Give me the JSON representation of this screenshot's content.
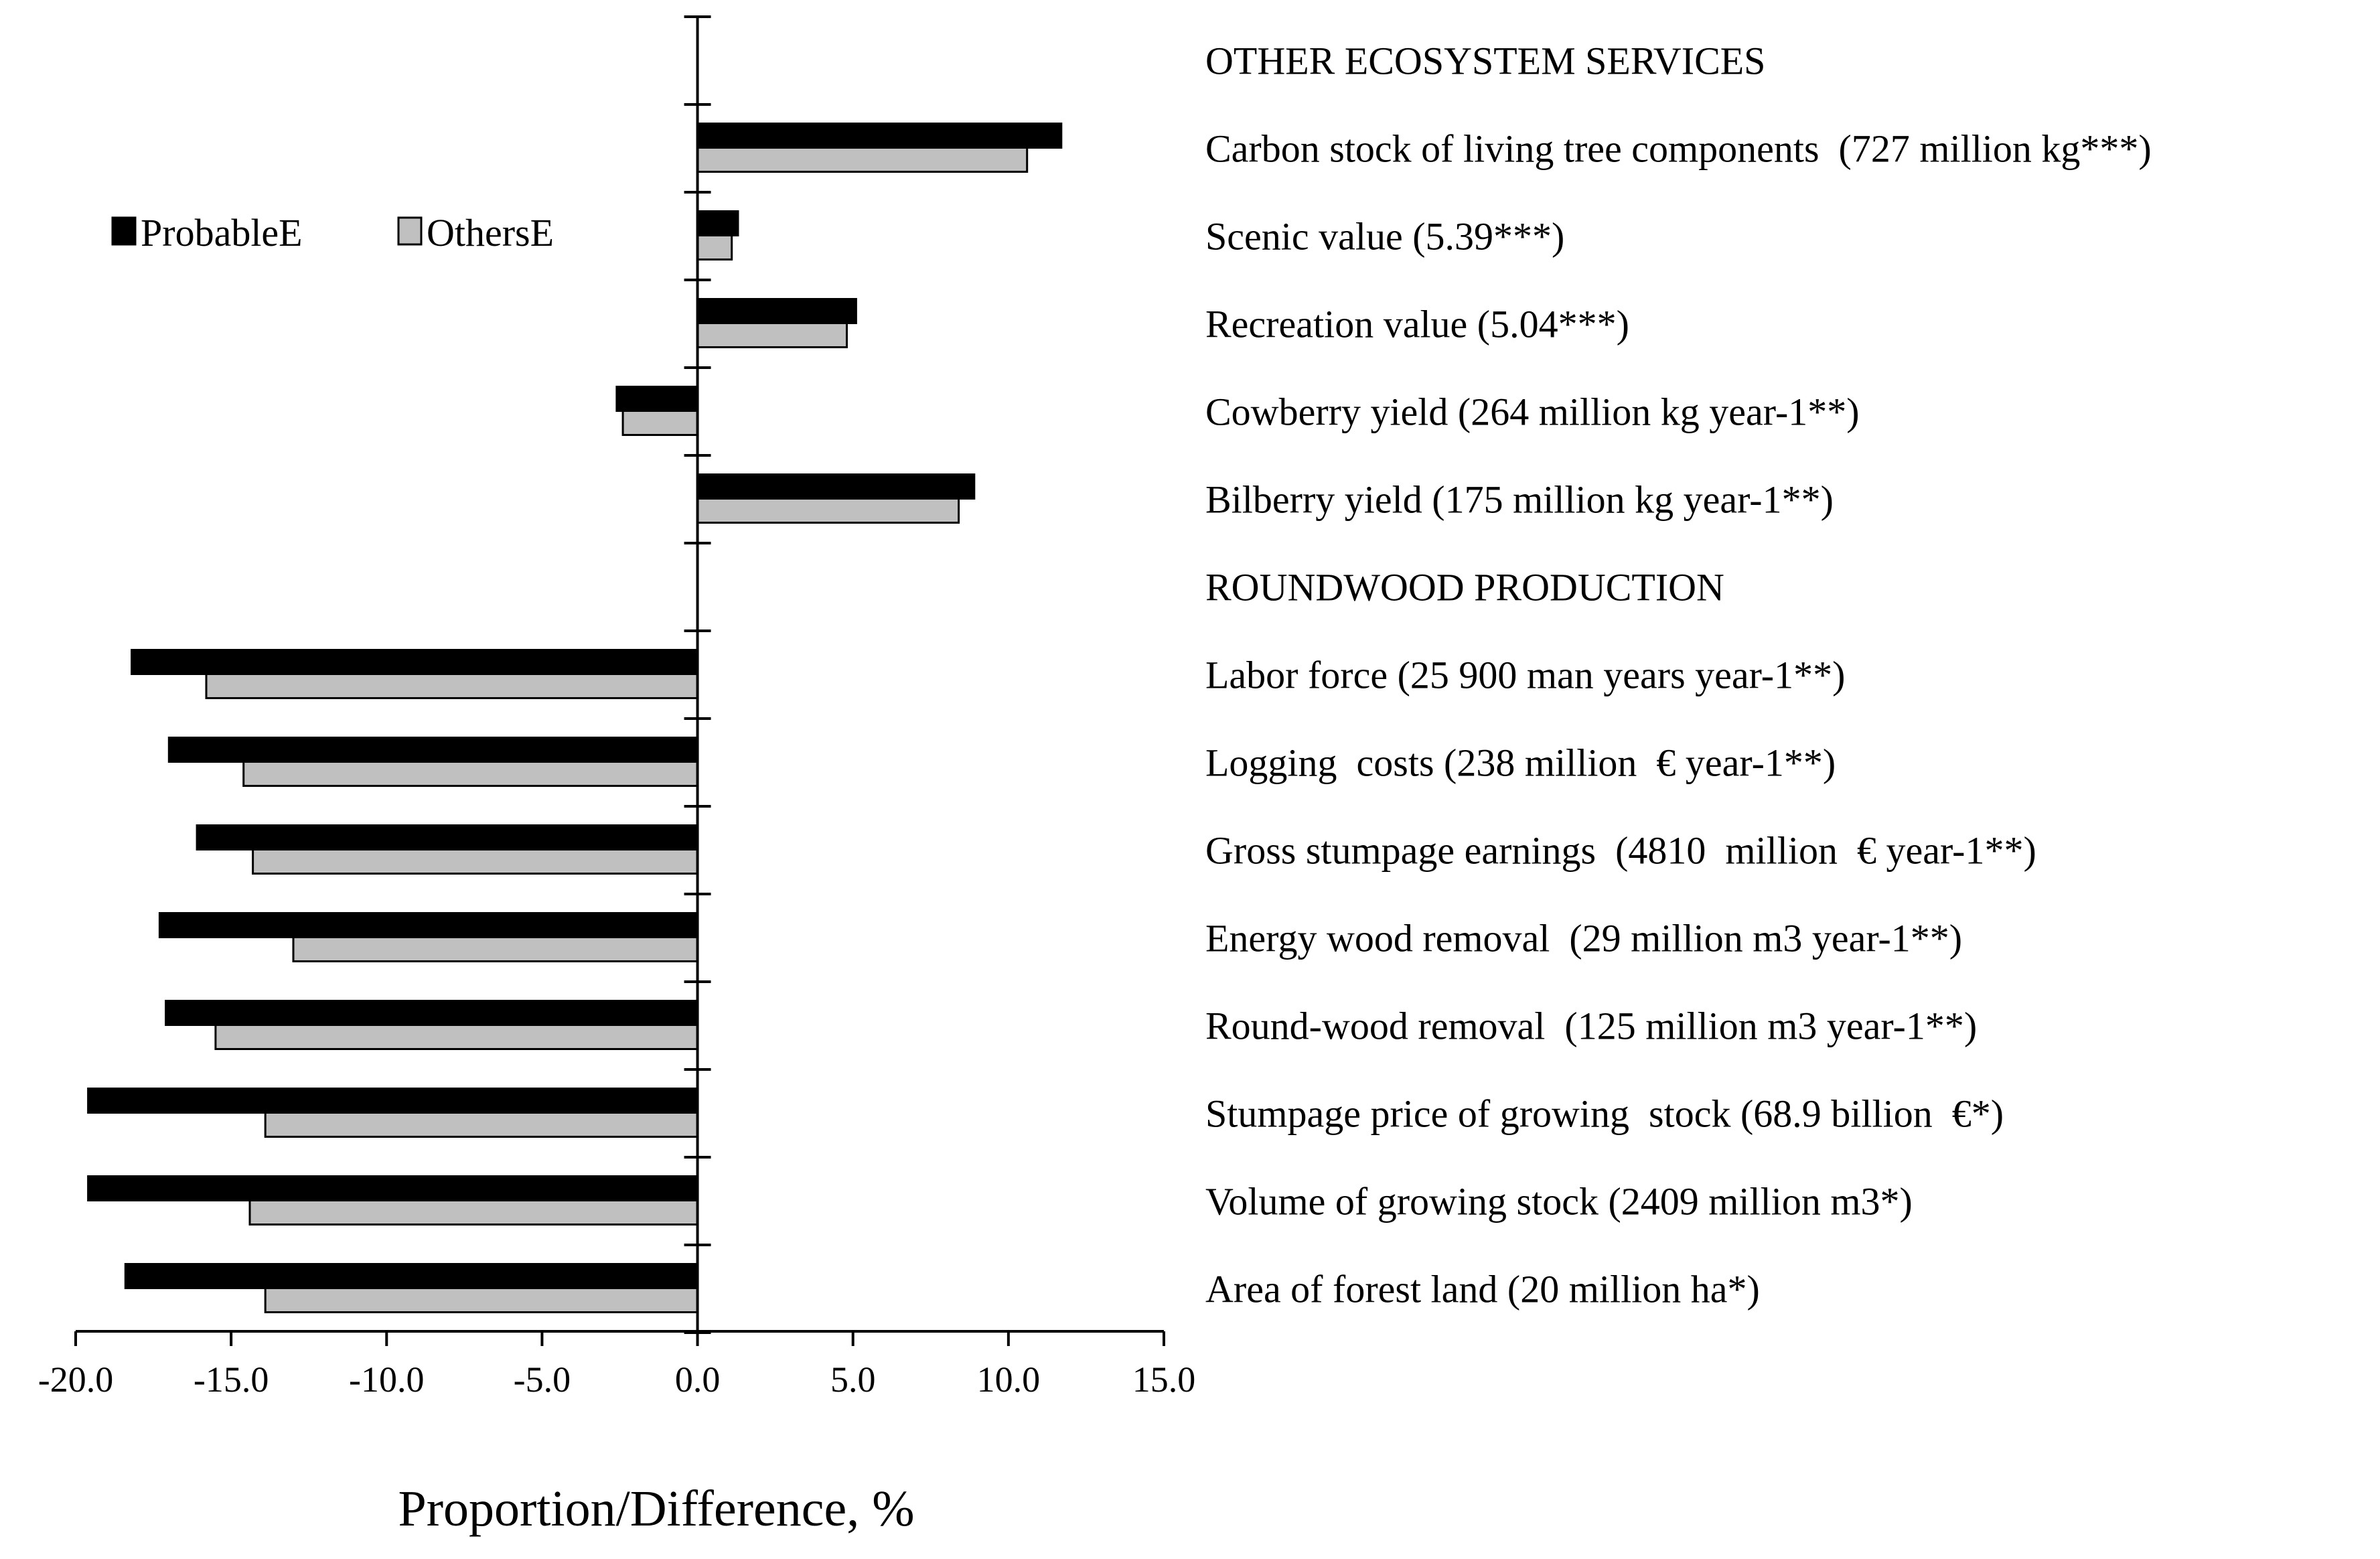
{
  "chart_data": {
    "type": "bar",
    "orientation": "horizontal",
    "xlabel": "Proportion/Difference, %",
    "xlim": [
      -20,
      15
    ],
    "xticks": [
      -20,
      -15,
      -10,
      -5,
      0,
      5,
      10,
      15
    ],
    "xtick_labels": [
      "-20.0",
      "-15.0",
      "-10.0",
      "-5.0",
      "0.0",
      "5.0",
      "10.0",
      "15.0"
    ],
    "categories": [
      "OTHER ECOSYSTEM SERVICES",
      "Carbon stock of living tree components  (727 million kg***)",
      "Scenic value (5.39***)",
      "Recreation value (5.04***)",
      "Cowberry yield (264 million kg year-1**)",
      "Bilberry yield (175 million kg year-1**)",
      "ROUNDWOOD PRODUCTION",
      "Labor force (25 900 man years year-1**)",
      "Logging  costs (238 million  € year-1**)",
      "Gross stumpage earnings  (4810  million  € year-1**)",
      "Energy wood removal  (29 million m3 year-1**)",
      "Round-wood removal  (125 million m3 year-1**)",
      "Stumpage price of growing  stock (68.9 billion  €*)",
      "Volume of growing stock (2409 million m3*)",
      "Area of forest land (20 million ha*)"
    ],
    "series": [
      {
        "name": "ProbableE",
        "color": "#000000",
        "values": [
          null,
          11.7,
          1.3,
          5.1,
          -2.6,
          8.9,
          null,
          -18.2,
          -17.0,
          -16.1,
          -17.3,
          -17.1,
          -19.6,
          -19.6,
          -18.4
        ]
      },
      {
        "name": "OthersE",
        "color": "#c0c0c0",
        "values": [
          null,
          10.6,
          1.1,
          4.8,
          -2.4,
          8.4,
          null,
          -15.8,
          -14.6,
          -14.3,
          -13.0,
          -15.5,
          -13.9,
          -14.4,
          -13.9
        ]
      }
    ],
    "legend": "top-left"
  }
}
